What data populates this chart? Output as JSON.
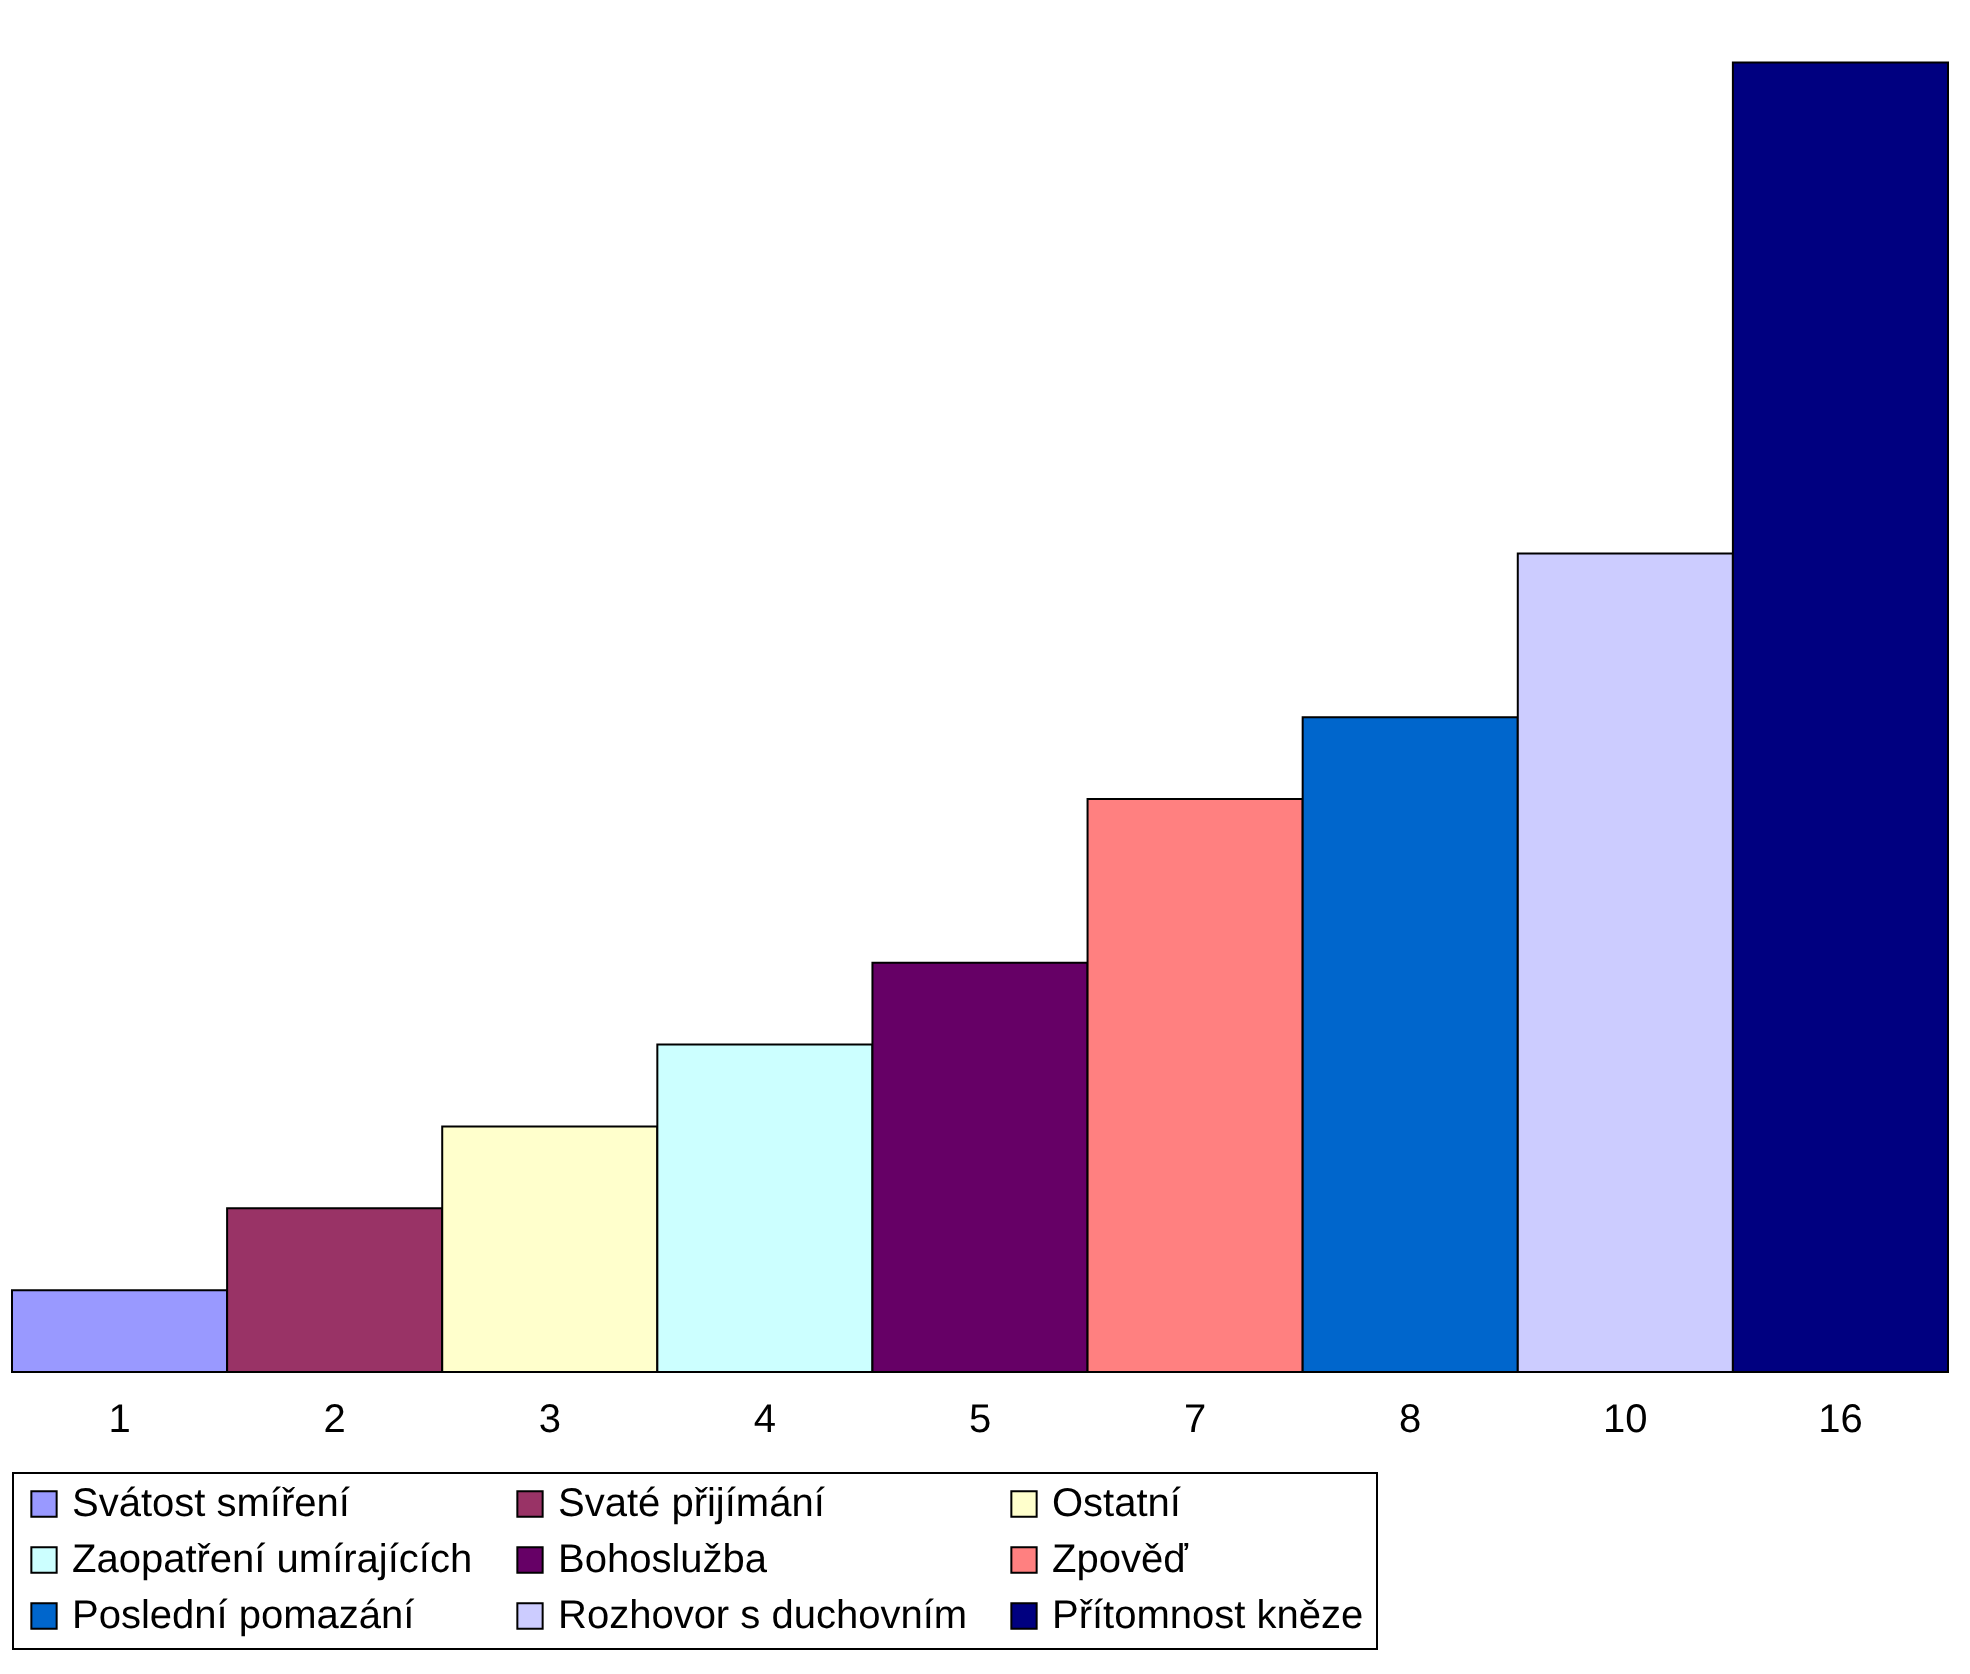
{
  "chart_data": {
    "type": "bar",
    "categories": [
      null
    ],
    "data_labels": true,
    "legend": "bottom",
    "series": [
      {
        "name": "Svátost smíření",
        "color": "#9999ff",
        "values": [
          1
        ]
      },
      {
        "name": "Svaté přijímání",
        "color": "#993366",
        "values": [
          2
        ]
      },
      {
        "name": "Ostatní",
        "color": "#ffffcc",
        "values": [
          3
        ]
      },
      {
        "name": "Zaopatření umírajících",
        "color": "#ccffff",
        "values": [
          4
        ]
      },
      {
        "name": "Bohoslužba",
        "color": "#660066",
        "values": [
          5
        ]
      },
      {
        "name": "Zpověď",
        "color": "#ff8080",
        "values": [
          7
        ]
      },
      {
        "name": "Poslední pomazání",
        "color": "#0066cc",
        "values": [
          8
        ]
      },
      {
        "name": "Rozhovor s duchovním",
        "color": "#ccccff",
        "values": [
          10
        ]
      },
      {
        "name": "Přítomnost kněze",
        "color": "#000080",
        "values": [
          16
        ]
      }
    ]
  }
}
